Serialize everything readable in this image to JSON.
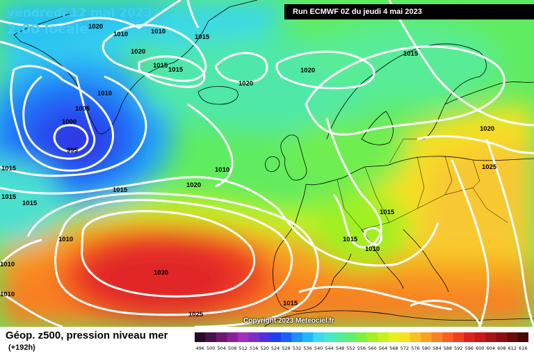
{
  "header": {
    "date_line1": "vendredi 12 mai 2023",
    "date_line2": "2:00 locale",
    "run_info": "Run ECMWF 0Z du jeudi 4 mai 2023"
  },
  "footer": {
    "title": "Géop. z500, pression niveau mer",
    "subtitle": "(+192h)",
    "copyright": "Copyright 2023 Meteociel.fr"
  },
  "legend": {
    "values": [
      "496",
      "500",
      "504",
      "508",
      "512",
      "516",
      "520",
      "524",
      "528",
      "532",
      "536",
      "540",
      "544",
      "548",
      "552",
      "556",
      "560",
      "564",
      "568",
      "572",
      "576",
      "580",
      "584",
      "588",
      "592",
      "596",
      "600",
      "604",
      "608",
      "612",
      "616"
    ],
    "colors": [
      "#2a0a2a",
      "#48124a",
      "#6d1a70",
      "#8a2096",
      "#a030b8",
      "#7a30c8",
      "#5030e0",
      "#2040f0",
      "#1860ff",
      "#1890ff",
      "#20b8ff",
      "#3cd8f0",
      "#48e8c8",
      "#50f09a",
      "#60f070",
      "#80f040",
      "#a8f020",
      "#c8f020",
      "#e8f020",
      "#f8e020",
      "#f8c020",
      "#f8a020",
      "#f88020",
      "#f86020",
      "#f04020",
      "#e02020",
      "#c81818",
      "#a81414",
      "#881010",
      "#680c0c",
      "#480808"
    ]
  },
  "map": {
    "isobar_labels": [
      {
        "text": "1020"
      },
      {
        "text": "1010"
      },
      {
        "text": "1010"
      },
      {
        "text": "1015"
      },
      {
        "text": "1020"
      },
      {
        "text": "1015"
      },
      {
        "text": "1015"
      },
      {
        "text": "1010"
      },
      {
        "text": "1005"
      },
      {
        "text": "1000"
      },
      {
        "text": "995"
      },
      {
        "text": "1020"
      },
      {
        "text": "1020"
      },
      {
        "text": "1015"
      },
      {
        "text": "1020"
      },
      {
        "text": "1025"
      },
      {
        "text": "1015"
      },
      {
        "text": "1010"
      },
      {
        "text": "1020"
      },
      {
        "text": "1015"
      },
      {
        "text": "1015"
      },
      {
        "text": "1010"
      },
      {
        "text": "1010"
      },
      {
        "text": "1030"
      },
      {
        "text": "1015"
      },
      {
        "text": "1015"
      },
      {
        "text": "1010"
      },
      {
        "text": "1015"
      },
      {
        "text": "1025"
      },
      {
        "text": "1010"
      },
      {
        "text": "1015"
      }
    ]
  }
}
